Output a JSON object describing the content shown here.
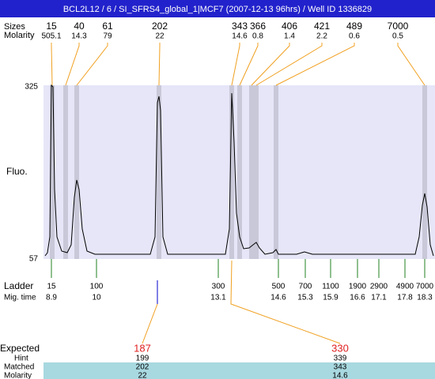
{
  "header": {
    "title": "BCL2L12 / 6 / SI_SFRS4_global_1|MCF7 (2007-12-13 96hrs) / Well ID 1336829"
  },
  "peaks": {
    "sizes_label": "Sizes",
    "molarity_label": "Molarity",
    "items": [
      {
        "size": 15,
        "molarity": 505.1
      },
      {
        "size": 40,
        "molarity": 14.3
      },
      {
        "size": 61,
        "molarity": 79
      },
      {
        "size": 202,
        "molarity": 22
      },
      {
        "size": 343,
        "molarity": 14.6
      },
      {
        "size": 366,
        "molarity": 0.8
      },
      {
        "size": 406,
        "molarity": 1.4
      },
      {
        "size": 421,
        "molarity": 2.2
      },
      {
        "size": 489,
        "molarity": 0.6
      },
      {
        "size": 7000,
        "molarity": 0.5
      }
    ]
  },
  "plot": {
    "ymax": 325,
    "ymin": 57,
    "ylabel": "Fluo."
  },
  "ladder": {
    "label": "Ladder",
    "time_label": "Mig. time",
    "items": [
      {
        "size": 15,
        "time": 8.9
      },
      {
        "size": 100,
        "time": 10
      },
      {
        "size": 300,
        "time": 13.1
      },
      {
        "size": 500,
        "time": 14.6
      },
      {
        "size": 700,
        "time": 15.3
      },
      {
        "size": 1100,
        "time": 15.9
      },
      {
        "size": 1900,
        "time": 16.6
      },
      {
        "size": 2900,
        "time": 17.1
      },
      {
        "size": 4900,
        "time": 17.8
      },
      {
        "size": 7000,
        "time": 18.3
      }
    ]
  },
  "expected": {
    "expected_label": "Expected",
    "hint_label": "Hint",
    "matched_label": "Matched",
    "molarity_label": "Molarity",
    "columns": [
      {
        "expected": 187,
        "hint": 199,
        "matched": 202,
        "molarity": 22
      },
      {
        "expected": 330,
        "hint": 339,
        "matched": 343,
        "molarity": 14.6
      }
    ]
  }
}
